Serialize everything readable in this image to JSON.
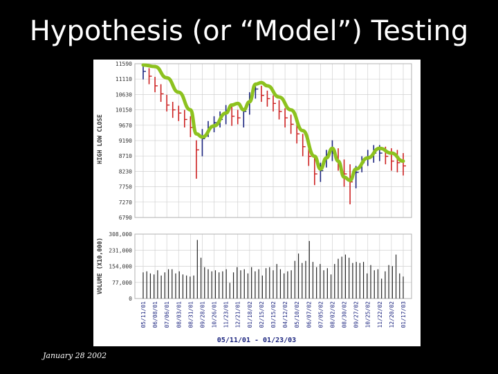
{
  "slide": {
    "title": "Hypothesis (or “Model”) Testing",
    "footer": "January 28 2002"
  },
  "colors": {
    "background": "#000000",
    "panel": "#ffffff",
    "up_bar": "#1a237e",
    "down_bar": "#cc2020",
    "model_curve": "#8dc21f",
    "axis_text": "#333333",
    "grid": "#d0d0d0"
  },
  "chart_data": [
    {
      "type": "line",
      "subtype": "high-low-close",
      "ylabel": "HIGH LOW CLOSE",
      "ylim": [
        6790,
        11590
      ],
      "y_ticks": [
        "11590",
        "11110",
        "10630",
        "10150",
        "9670",
        "9190",
        "8710",
        "8230",
        "7750",
        "7270",
        "6790"
      ],
      "grid": true,
      "series": [
        {
          "name": "",
          "x": [
            "05/11/01",
            "05/25/01",
            "06/08/01",
            "06/22/01",
            "07/06/01",
            "07/20/01",
            "08/03/01",
            "08/17/01",
            "08/31/01",
            "09/14/01",
            "09/28/01",
            "10/12/01",
            "10/26/01",
            "11/09/01",
            "11/23/01",
            "12/07/01",
            "12/21/01",
            "01/04/02",
            "01/18/02",
            "02/01/02",
            "02/15/02",
            "03/01/02",
            "03/15/02",
            "03/29/02",
            "04/12/02",
            "04/26/02",
            "05/10/02",
            "05/24/02",
            "06/07/02",
            "06/21/02",
            "07/05/02",
            "07/19/02",
            "08/02/02",
            "08/16/02",
            "08/30/02",
            "09/13/02",
            "09/27/02",
            "10/11/02",
            "10/25/02",
            "11/08/02",
            "11/22/02",
            "12/06/02",
            "12/20/02",
            "01/03/03",
            "01/17/03"
          ],
          "high": [
            11590,
            11450,
            11180,
            10950,
            10620,
            10400,
            10280,
            10150,
            9950,
            9200,
            9550,
            9800,
            9950,
            10100,
            10300,
            10280,
            10150,
            10200,
            10700,
            11000,
            10900,
            10750,
            10600,
            10450,
            10200,
            10000,
            9750,
            9400,
            9150,
            8650,
            8500,
            8900,
            9200,
            8950,
            8600,
            8450,
            8400,
            8700,
            8900,
            9050,
            9050,
            9000,
            8950,
            8900,
            8800
          ],
          "low": [
            11100,
            10950,
            10700,
            10400,
            10100,
            9900,
            9800,
            9600,
            9300,
            8000,
            8700,
            9300,
            9450,
            9600,
            9700,
            9650,
            9700,
            9600,
            10000,
            10500,
            10400,
            10250,
            10100,
            9850,
            9600,
            9400,
            9100,
            8700,
            8400,
            7800,
            7900,
            8350,
            8550,
            8250,
            7750,
            7200,
            7700,
            8200,
            8400,
            8500,
            8550,
            8450,
            8250,
            8200,
            8100
          ],
          "close": [
            11350,
            11200,
            10900,
            10650,
            10300,
            10150,
            10050,
            9850,
            9600,
            8900,
            9250,
            9600,
            9750,
            9850,
            10050,
            9950,
            9900,
            10100,
            10500,
            10800,
            10600,
            10500,
            10350,
            10100,
            9900,
            9700,
            9400,
            9000,
            8700,
            8150,
            8250,
            8750,
            8800,
            8500,
            8150,
            7900,
            8200,
            8500,
            8650,
            8800,
            8800,
            8700,
            8550,
            8500,
            8400
          ]
        },
        {
          "name": "",
          "role": "model curve",
          "x": [
            "05/11/01",
            "06/08/01",
            "07/06/01",
            "08/03/01",
            "08/31/01",
            "09/14/01",
            "09/28/01",
            "10/26/01",
            "11/23/01",
            "12/07/01",
            "12/21/01",
            "01/04/02",
            "01/18/02",
            "02/01/02",
            "02/15/02",
            "03/01/02",
            "03/29/02",
            "04/26/02",
            "05/24/02",
            "06/21/02",
            "07/05/02",
            "07/19/02",
            "08/02/02",
            "08/16/02",
            "08/30/02",
            "09/13/02",
            "09/27/02",
            "10/25/02",
            "11/22/02",
            "12/20/02",
            "01/17/03"
          ],
          "values": [
            11550,
            11500,
            11150,
            10700,
            10150,
            9400,
            9300,
            9650,
            10050,
            10300,
            10350,
            10150,
            10400,
            10950,
            11000,
            10900,
            10550,
            10150,
            9500,
            8700,
            8300,
            8650,
            8950,
            8550,
            8050,
            7950,
            8300,
            8650,
            8950,
            8800,
            8550
          ]
        }
      ]
    },
    {
      "type": "bar",
      "ylabel": "VOLUME (X10,000)",
      "xlabel": "05/11/01 - 01/23/03",
      "ylim": [
        0,
        308000
      ],
      "y_ticks": [
        "308,000",
        "231,000",
        "154,000",
        "77,000",
        "0"
      ],
      "x_tick_labels": [
        "05/11/01",
        "06/08/01",
        "07/06/01",
        "08/03/01",
        "08/31/01",
        "09/28/01",
        "10/26/01",
        "11/23/01",
        "12/21/01",
        "01/18/02",
        "02/15/02",
        "03/15/02",
        "04/12/02",
        "05/10/02",
        "06/07/02",
        "07/05/02",
        "08/02/02",
        "08/30/02",
        "09/27/02",
        "10/25/02",
        "11/22/02",
        "12/20/02",
        "01/17/03"
      ],
      "values": [
        125000,
        130000,
        120000,
        115000,
        135000,
        110000,
        125000,
        140000,
        140000,
        120000,
        130000,
        115000,
        110000,
        105000,
        110000,
        280000,
        195000,
        150000,
        140000,
        130000,
        135000,
        125000,
        130000,
        140000,
        75000,
        125000,
        150000,
        135000,
        140000,
        120000,
        150000,
        130000,
        140000,
        110000,
        145000,
        150000,
        135000,
        165000,
        140000,
        120000,
        130000,
        135000,
        180000,
        215000,
        170000,
        180000,
        275000,
        175000,
        150000,
        165000,
        135000,
        145000,
        115000,
        165000,
        190000,
        200000,
        210000,
        195000,
        170000,
        175000,
        170000,
        175000,
        120000,
        160000,
        135000,
        140000,
        95000,
        130000,
        160000,
        155000,
        210000,
        120000,
        105000
      ]
    }
  ]
}
